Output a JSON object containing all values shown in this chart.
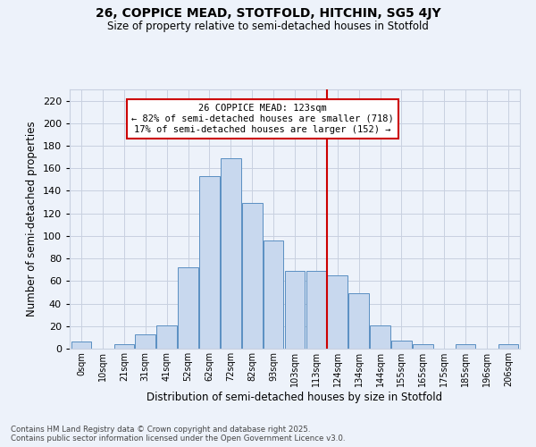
{
  "title1": "26, COPPICE MEAD, STOTFOLD, HITCHIN, SG5 4JY",
  "title2": "Size of property relative to semi-detached houses in Stotfold",
  "xlabel": "Distribution of semi-detached houses by size in Stotfold",
  "ylabel": "Number of semi-detached properties",
  "bar_labels": [
    "0sqm",
    "10sqm",
    "21sqm",
    "31sqm",
    "41sqm",
    "52sqm",
    "62sqm",
    "72sqm",
    "82sqm",
    "93sqm",
    "103sqm",
    "113sqm",
    "124sqm",
    "134sqm",
    "144sqm",
    "155sqm",
    "165sqm",
    "175sqm",
    "185sqm",
    "196sqm",
    "206sqm"
  ],
  "bar_values": [
    6,
    0,
    4,
    13,
    21,
    72,
    153,
    169,
    129,
    96,
    69,
    69,
    65,
    49,
    21,
    7,
    4,
    0,
    4,
    0,
    4
  ],
  "bar_color": "#c8d8ee",
  "bar_edge_color": "#5a8fc2",
  "grid_color": "#c8d0e0",
  "background_color": "#edf2fa",
  "vline_color": "#cc0000",
  "annotation_text": "26 COPPICE MEAD: 123sqm\n← 82% of semi-detached houses are smaller (718)\n17% of semi-detached houses are larger (152) →",
  "annotation_box_color": "white",
  "annotation_border_color": "#cc0000",
  "ylim": [
    0,
    230
  ],
  "yticks": [
    0,
    20,
    40,
    60,
    80,
    100,
    120,
    140,
    160,
    180,
    200,
    220
  ],
  "footnote": "Contains HM Land Registry data © Crown copyright and database right 2025.\nContains public sector information licensed under the Open Government Licence v3.0.",
  "vline_index": 11.5
}
